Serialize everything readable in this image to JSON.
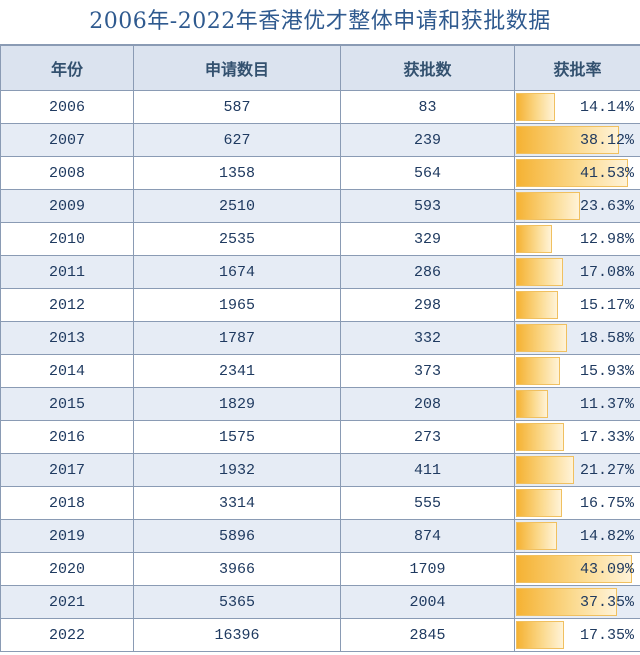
{
  "title": "2006年-2022年香港优才整体申请和获批数据",
  "headers": [
    "年份",
    "申请数目",
    "获批数",
    "获批率"
  ],
  "chart_data": {
    "type": "table",
    "columns": [
      "年份",
      "申请数目",
      "获批数",
      "获批率"
    ],
    "rows": [
      {
        "year": "2006",
        "applications": "587",
        "approved": "83",
        "rate": "14.14%",
        "rate_value": 14.14
      },
      {
        "year": "2007",
        "applications": "627",
        "approved": "239",
        "rate": "38.12%",
        "rate_value": 38.12
      },
      {
        "year": "2008",
        "applications": "1358",
        "approved": "564",
        "rate": "41.53%",
        "rate_value": 41.53
      },
      {
        "year": "2009",
        "applications": "2510",
        "approved": "593",
        "rate": "23.63%",
        "rate_value": 23.63
      },
      {
        "year": "2010",
        "applications": "2535",
        "approved": "329",
        "rate": "12.98%",
        "rate_value": 12.98
      },
      {
        "year": "2011",
        "applications": "1674",
        "approved": "286",
        "rate": "17.08%",
        "rate_value": 17.08
      },
      {
        "year": "2012",
        "applications": "1965",
        "approved": "298",
        "rate": "15.17%",
        "rate_value": 15.17
      },
      {
        "year": "2013",
        "applications": "1787",
        "approved": "332",
        "rate": "18.58%",
        "rate_value": 18.58
      },
      {
        "year": "2014",
        "applications": "2341",
        "approved": "373",
        "rate": "15.93%",
        "rate_value": 15.93
      },
      {
        "year": "2015",
        "applications": "1829",
        "approved": "208",
        "rate": "11.37%",
        "rate_value": 11.37
      },
      {
        "year": "2016",
        "applications": "1575",
        "approved": "273",
        "rate": "17.33%",
        "rate_value": 17.33
      },
      {
        "year": "2017",
        "applications": "1932",
        "approved": "411",
        "rate": "21.27%",
        "rate_value": 21.27
      },
      {
        "year": "2018",
        "applications": "3314",
        "approved": "555",
        "rate": "16.75%",
        "rate_value": 16.75
      },
      {
        "year": "2019",
        "applications": "5896",
        "approved": "874",
        "rate": "14.82%",
        "rate_value": 14.82
      },
      {
        "year": "2020",
        "applications": "3966",
        "approved": "1709",
        "rate": "43.09%",
        "rate_value": 43.09
      },
      {
        "year": "2021",
        "applications": "5365",
        "approved": "2004",
        "rate": "37.35%",
        "rate_value": 37.35
      },
      {
        "year": "2022",
        "applications": "16396",
        "approved": "2845",
        "rate": "17.35%",
        "rate_value": 17.35
      }
    ]
  }
}
